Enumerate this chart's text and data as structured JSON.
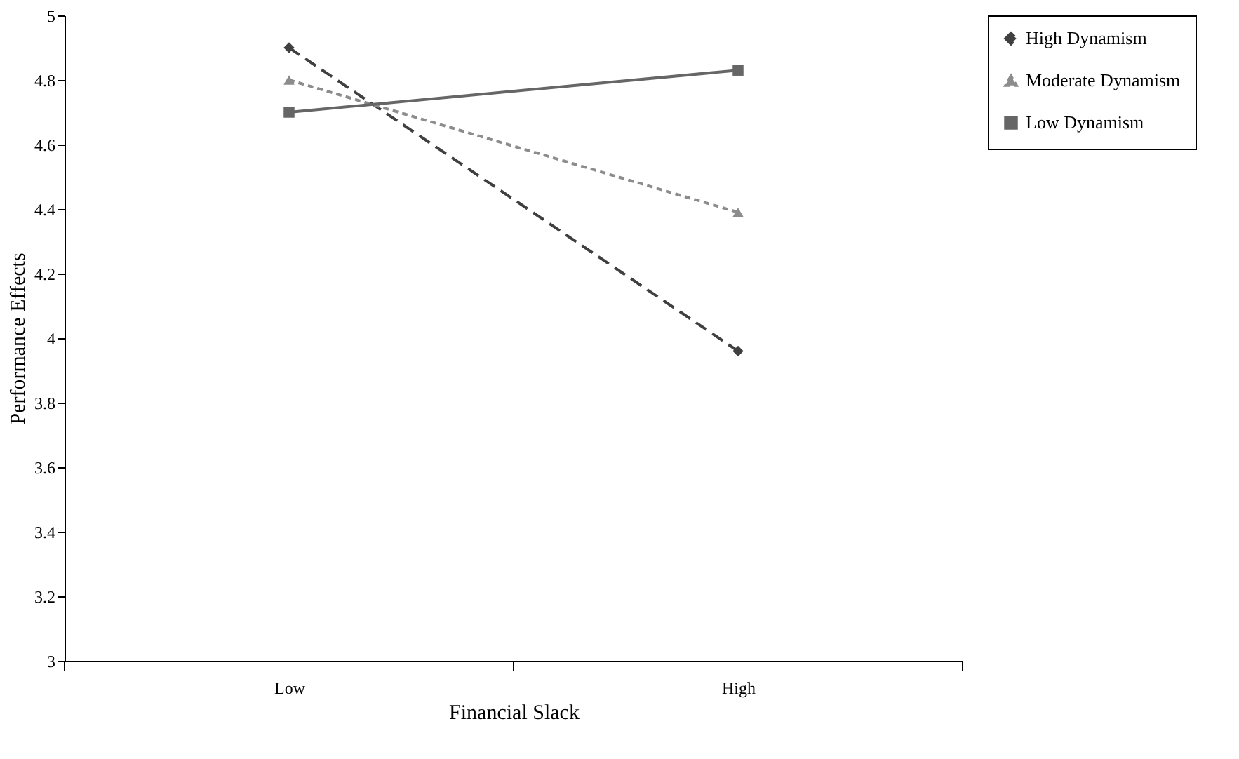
{
  "chart_data": {
    "type": "line",
    "xlabel": "Financial Slack",
    "ylabel": "Performance Effects",
    "categories": [
      "Low",
      "High"
    ],
    "series": [
      {
        "name": "High Dynamism",
        "color": "#404040",
        "values": [
          4.9,
          3.96
        ],
        "marker": "diamond",
        "line_style": "dashed"
      },
      {
        "name": "Moderate Dynamism",
        "color": "#8c8c8c",
        "values": [
          4.8,
          4.39
        ],
        "marker": "triangle",
        "line_style": "dotted"
      },
      {
        "name": "Low Dynamism",
        "color": "#666666",
        "values": [
          4.7,
          4.83
        ],
        "marker": "square",
        "line_style": "solid"
      }
    ],
    "ylim": [
      3,
      5
    ],
    "yticks": [
      3,
      3.2,
      3.4,
      3.6,
      3.8,
      4,
      4.2,
      4.4,
      4.6,
      4.8,
      5
    ],
    "grid": false,
    "legend": "right"
  }
}
